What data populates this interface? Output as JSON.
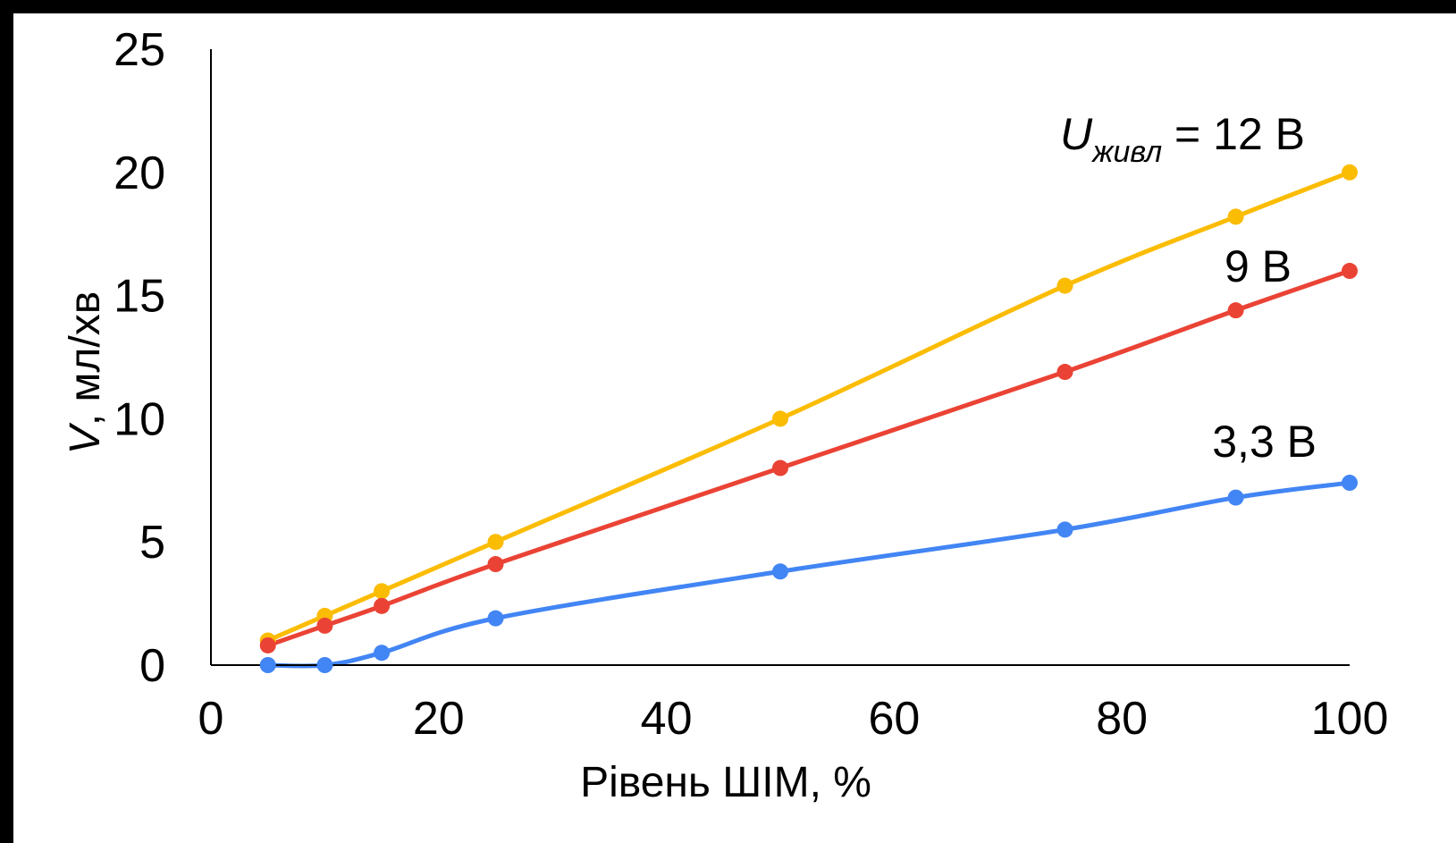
{
  "chart_data": {
    "type": "line",
    "xlabel": "Рівень ШІМ, %",
    "ylabel_symbol": "V",
    "ylabel_rest": ", мл/хв",
    "xlim": [
      0,
      100
    ],
    "ylim": [
      0,
      25
    ],
    "x_ticks": [
      0,
      20,
      40,
      60,
      80,
      100
    ],
    "y_ticks": [
      0,
      5,
      10,
      15,
      20,
      25
    ],
    "grid": false,
    "legend": "none",
    "x": [
      5,
      10,
      15,
      25,
      50,
      75,
      90,
      100
    ],
    "series": [
      {
        "key": "s12",
        "color": "#FBBC04",
        "values": [
          1.0,
          2.0,
          3.0,
          5.0,
          10.0,
          15.4,
          18.2,
          20.0
        ],
        "label_symbol": "U",
        "label_subscript": "живл",
        "label_rest": " = 12 В"
      },
      {
        "key": "s9",
        "color": "#EA4335",
        "values": [
          0.8,
          1.6,
          2.4,
          4.1,
          8.0,
          11.9,
          14.4,
          16.0
        ],
        "label_rest": "9 В"
      },
      {
        "key": "s33",
        "color": "#4285F4",
        "values": [
          0.0,
          0.0,
          0.5,
          1.9,
          3.8,
          5.5,
          6.8,
          7.4
        ],
        "label_rest": "3,3 В"
      }
    ]
  }
}
